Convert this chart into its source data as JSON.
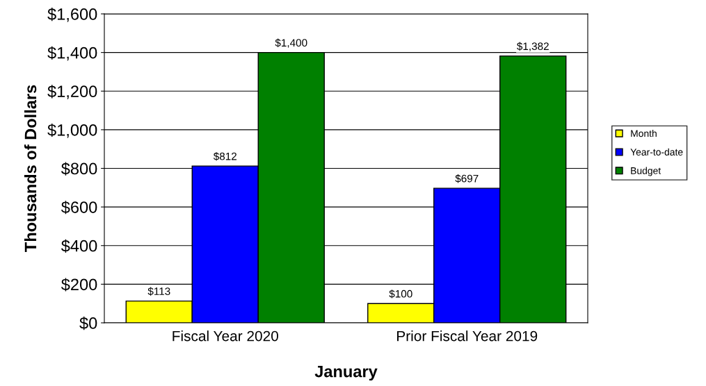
{
  "chart_data": {
    "type": "bar",
    "xlabel": "January",
    "ylabel": "Thousands of Dollars",
    "categories": [
      "Fiscal Year 2020",
      "Prior Fiscal Year 2019"
    ],
    "series": [
      {
        "name": "Month",
        "color": "#ffff00",
        "values": [
          113,
          100
        ],
        "value_labels": [
          "$113",
          "$100"
        ]
      },
      {
        "name": "Year-to-date",
        "color": "#0000ff",
        "values": [
          812,
          697
        ],
        "value_labels": [
          "$812",
          "$697"
        ]
      },
      {
        "name": "Budget",
        "color": "#008000",
        "values": [
          1400,
          1382
        ],
        "value_labels": [
          "$1,400",
          "$1,382"
        ]
      }
    ],
    "ylim": [
      0,
      1600
    ],
    "yticks": [
      {
        "value": 0,
        "label": "$0"
      },
      {
        "value": 200,
        "label": "$200"
      },
      {
        "value": 400,
        "label": "$400"
      },
      {
        "value": 600,
        "label": "$600"
      },
      {
        "value": 800,
        "label": "$800"
      },
      {
        "value": 1000,
        "label": "$1,000"
      },
      {
        "value": 1200,
        "label": "$1,200"
      },
      {
        "value": 1400,
        "label": "$1,400"
      },
      {
        "value": 1600,
        "label": "$1,600"
      }
    ],
    "grid": "y",
    "legend": "right"
  }
}
